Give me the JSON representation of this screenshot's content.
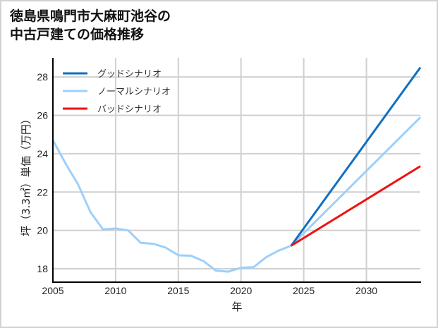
{
  "title_lines": [
    "徳島県鳴門市大麻町池谷の",
    "中古戸建ての価格推移"
  ],
  "chart_data": {
    "type": "line",
    "title": "徳島県鳴門市大麻町池谷の中古戸建ての価格推移",
    "xlabel": "年",
    "ylabel": "坪（3.3㎡）単価（万円）",
    "xlim": [
      2005,
      2034.3
    ],
    "ylim": [
      17.3,
      29.0
    ],
    "xticks": [
      2005,
      2010,
      2015,
      2020,
      2025,
      2030
    ],
    "yticks": [
      18,
      20,
      22,
      24,
      26,
      28
    ],
    "grid": true,
    "legend_position": "upper left",
    "series": [
      {
        "name": "グッドシナリオ",
        "color": "#0f70c1",
        "x": [
          2024,
          2034.3
        ],
        "values": [
          19.2,
          28.5
        ]
      },
      {
        "name": "ノーマルシナリオ",
        "color": "#9dd0fb",
        "x": [
          2005,
          2006,
          2007,
          2008,
          2009,
          2010,
          2011,
          2012,
          2013,
          2014,
          2015,
          2016,
          2017,
          2018,
          2019,
          2020,
          2021,
          2022,
          2023,
          2024,
          2034.3
        ],
        "values": [
          24.7,
          23.5,
          22.4,
          20.95,
          20.05,
          20.1,
          20.0,
          19.35,
          19.3,
          19.1,
          18.7,
          18.68,
          18.4,
          17.9,
          17.85,
          18.05,
          18.08,
          18.6,
          18.95,
          19.2,
          25.9
        ]
      },
      {
        "name": "バッドシナリオ",
        "color": "#ee1111",
        "x": [
          2024,
          2034.3
        ],
        "values": [
          19.2,
          23.35
        ]
      }
    ]
  }
}
